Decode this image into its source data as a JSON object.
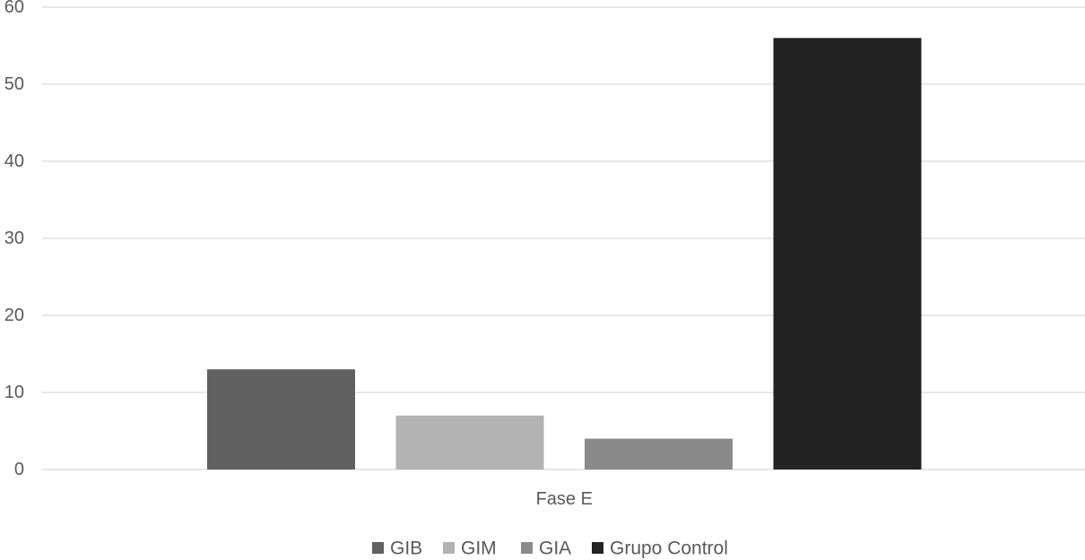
{
  "chart_data": {
    "type": "bar",
    "categories": [
      "Fase E"
    ],
    "series": [
      {
        "name": "GIB",
        "values": [
          13
        ],
        "color": "#606060"
      },
      {
        "name": "GIM",
        "values": [
          7
        ],
        "color": "#b3b3b3"
      },
      {
        "name": "GIA",
        "values": [
          4
        ],
        "color": "#8a8a8a"
      },
      {
        "name": "Grupo Control",
        "values": [
          56
        ],
        "color": "#232323"
      }
    ],
    "title": "",
    "xlabel": "",
    "ylabel": "",
    "ylim": [
      0,
      60
    ],
    "yticks": [
      0,
      10,
      20,
      30,
      40,
      50,
      60
    ],
    "grid": true,
    "legend": "bottom"
  }
}
